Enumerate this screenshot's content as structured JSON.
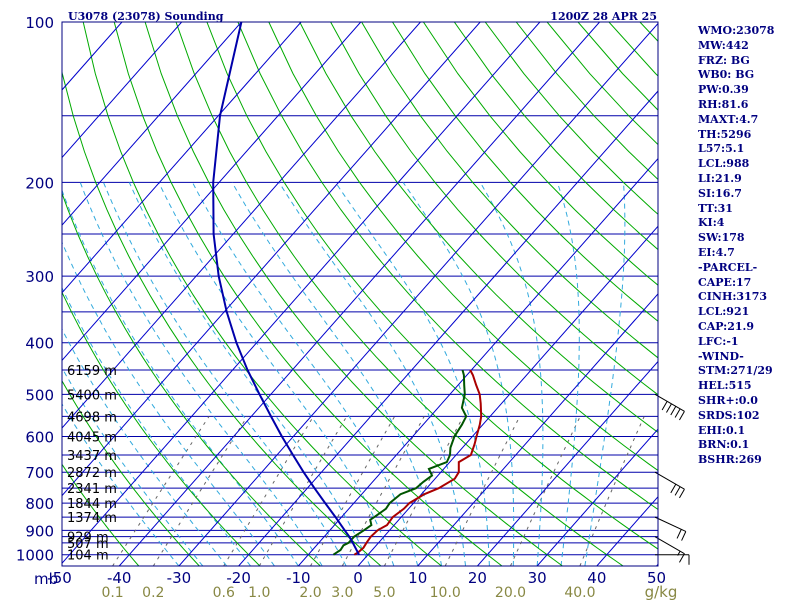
{
  "header": {
    "title": "U3078 (23078) Sounding",
    "datetime": "1200Z 28 APR 25"
  },
  "indices": [
    "WMO:23078",
    "MW:442",
    "FRZ: BG",
    "WB0: BG",
    "PW:0.39",
    "RH:81.6",
    "MAXT:4.7",
    "TH:5296",
    "L57:5.1",
    "LCL:988",
    "LI:21.9",
    "SI:16.7",
    "TT:31",
    "KI:4",
    "SW:178",
    "EI:4.7",
    "-PARCEL-",
    "CAPE:17",
    "CINH:3173",
    "LCL:921",
    "CAP:21.9",
    "LFC:-1",
    "-WIND-",
    "STM:271/29",
    "HEL:515",
    "SHR+:0.0",
    "SRDS:102",
    "EHI:0.1",
    "BRN:0.1",
    "BSHR:269"
  ],
  "colors": {
    "frame": "#000080",
    "isobar": "#0000aa",
    "isotherm": "#0000cc",
    "dry_adiabat": "#00aa00",
    "moist_adiabat": "#33aadd",
    "mixing_ratio": "#666666",
    "temperature": "#aa0000",
    "dewpoint": "#005500",
    "parcel": "#0000aa",
    "pressure_labels": "#000080",
    "temp_labels": "#000080",
    "mixing_labels": "#888844"
  },
  "chart_data": {
    "type": "line",
    "title": "U3078 (23078) Sounding",
    "pressure_unit": "mb",
    "mixing_ratio_unit": "g/kg",
    "pressure_ticks": [
      "100",
      "200",
      "300",
      "400",
      "500",
      "600",
      "700",
      "800",
      "900",
      "1000"
    ],
    "temperature_ticks": [
      "-50",
      "-40",
      "-30",
      "-20",
      "-10",
      "0",
      "10",
      "20",
      "30",
      "40",
      "50"
    ],
    "mixing_ratio_ticks": [
      "0.1",
      "0.2",
      "0.6",
      "1.0",
      "2.0",
      "3.0",
      "5.0",
      "10.0",
      "20.0",
      "40.0"
    ],
    "height_labels": [
      {
        "p": 1000,
        "label": "104 m"
      },
      {
        "p": 950,
        "label": "507 m"
      },
      {
        "p": 925,
        "label": "929 m"
      },
      {
        "p": 850,
        "label": "1374 m"
      },
      {
        "p": 800,
        "label": "1844 m"
      },
      {
        "p": 750,
        "label": "2341 m"
      },
      {
        "p": 700,
        "label": "2872 m"
      },
      {
        "p": 650,
        "label": "3437 m"
      },
      {
        "p": 600,
        "label": "4045 m"
      },
      {
        "p": 550,
        "label": "4698 m"
      },
      {
        "p": 500,
        "label": "5400 m"
      },
      {
        "p": 450,
        "label": "6159 m"
      }
    ],
    "series": [
      {
        "name": "Temperature",
        "points": [
          {
            "p": 1000,
            "t": -2.3
          },
          {
            "p": 990,
            "t": -2.0
          },
          {
            "p": 970,
            "t": -1.8
          },
          {
            "p": 950,
            "t": -2.0
          },
          {
            "p": 925,
            "t": -2.2
          },
          {
            "p": 900,
            "t": -2.0
          },
          {
            "p": 880,
            "t": -1.2
          },
          {
            "p": 850,
            "t": -1.4
          },
          {
            "p": 820,
            "t": -0.8
          },
          {
            "p": 800,
            "t": -0.7
          },
          {
            "p": 770,
            "t": 0.5
          },
          {
            "p": 750,
            "t": 2.0
          },
          {
            "p": 720,
            "t": 3.3
          },
          {
            "p": 700,
            "t": 3.0
          },
          {
            "p": 670,
            "t": 1.5
          },
          {
            "p": 650,
            "t": 2.5
          },
          {
            "p": 620,
            "t": 1.5
          },
          {
            "p": 600,
            "t": 0.7
          },
          {
            "p": 570,
            "t": -0.5
          },
          {
            "p": 550,
            "t": -1.5
          },
          {
            "p": 520,
            "t": -3.5
          },
          {
            "p": 500,
            "t": -5.0
          },
          {
            "p": 480,
            "t": -7.0
          },
          {
            "p": 460,
            "t": -9.0
          },
          {
            "p": 450,
            "t": -10.2
          }
        ]
      },
      {
        "name": "Dewpoint",
        "points": [
          {
            "p": 1000,
            "t": -5.8
          },
          {
            "p": 980,
            "t": -5.3
          },
          {
            "p": 960,
            "t": -5.5
          },
          {
            "p": 950,
            "t": -5.0
          },
          {
            "p": 925,
            "t": -5.0
          },
          {
            "p": 900,
            "t": -4.3
          },
          {
            "p": 880,
            "t": -3.8
          },
          {
            "p": 860,
            "t": -4.8
          },
          {
            "p": 850,
            "t": -4.5
          },
          {
            "p": 820,
            "t": -3.8
          },
          {
            "p": 800,
            "t": -4.0
          },
          {
            "p": 770,
            "t": -3.5
          },
          {
            "p": 750,
            "t": -1.8
          },
          {
            "p": 730,
            "t": -1.5
          },
          {
            "p": 710,
            "t": -1.0
          },
          {
            "p": 690,
            "t": -2.5
          },
          {
            "p": 670,
            "t": -0.5
          },
          {
            "p": 650,
            "t": -1.0
          },
          {
            "p": 630,
            "t": -2.0
          },
          {
            "p": 600,
            "t": -3.0
          },
          {
            "p": 570,
            "t": -3.5
          },
          {
            "p": 550,
            "t": -4.0
          },
          {
            "p": 530,
            "t": -6.0
          },
          {
            "p": 500,
            "t": -7.5
          },
          {
            "p": 480,
            "t": -9.0
          },
          {
            "p": 460,
            "t": -10.5
          },
          {
            "p": 450,
            "t": -11.5
          }
        ]
      },
      {
        "name": "Parcel",
        "points": [
          {
            "p": 1000,
            "t": -1.5
          },
          {
            "p": 950,
            "t": -4.3
          },
          {
            "p": 925,
            "t": -5.8
          },
          {
            "p": 900,
            "t": -7.5
          },
          {
            "p": 850,
            "t": -11.0
          },
          {
            "p": 800,
            "t": -14.8
          },
          {
            "p": 750,
            "t": -18.8
          },
          {
            "p": 700,
            "t": -23.0
          },
          {
            "p": 650,
            "t": -27.3
          },
          {
            "p": 600,
            "t": -31.9
          },
          {
            "p": 550,
            "t": -36.7
          },
          {
            "p": 500,
            "t": -41.9
          },
          {
            "p": 450,
            "t": -47.5
          },
          {
            "p": 400,
            "t": -53.4
          },
          {
            "p": 350,
            "t": -59.6
          },
          {
            "p": 300,
            "t": -66.2
          },
          {
            "p": 250,
            "t": -73.3
          },
          {
            "p": 200,
            "t": -81.0
          },
          {
            "p": 150,
            "t": -89.7
          },
          {
            "p": 100,
            "t": -100.0
          }
        ]
      }
    ],
    "wind_barbs": [
      {
        "p": 1000,
        "direction": 270,
        "speed": 10
      },
      {
        "p": 925,
        "direction": 300,
        "speed": 15
      },
      {
        "p": 850,
        "direction": 295,
        "speed": 20
      },
      {
        "p": 700,
        "direction": 300,
        "speed": 30
      },
      {
        "p": 500,
        "direction": 300,
        "speed": 50
      }
    ]
  }
}
